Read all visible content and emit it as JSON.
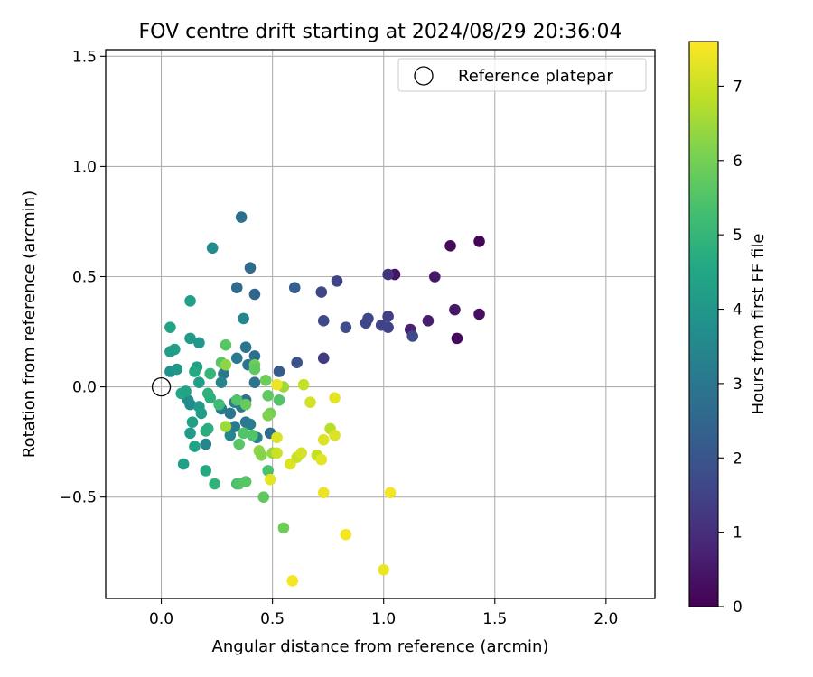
{
  "chart_data": {
    "type": "scatter",
    "title": "FOV centre drift starting at 2024/08/29 20:36:04",
    "xlabel": "Angular distance from reference (arcmin)",
    "ylabel": "Rotation from reference (arcmin)",
    "xlim": [
      -0.25,
      2.22
    ],
    "ylim": [
      -0.96,
      1.53
    ],
    "xticks": [
      {
        "v": 0.0,
        "label": "0.0"
      },
      {
        "v": 0.5,
        "label": "0.5"
      },
      {
        "v": 1.0,
        "label": "1.0"
      },
      {
        "v": 1.5,
        "label": "1.5"
      },
      {
        "v": 2.0,
        "label": "2.0"
      }
    ],
    "yticks": [
      {
        "v": -0.5,
        "label": "−0.5"
      },
      {
        "v": 0.0,
        "label": "0.0"
      },
      {
        "v": 0.5,
        "label": "0.5"
      },
      {
        "v": 1.0,
        "label": "1.0"
      },
      {
        "v": 1.5,
        "label": "1.5"
      }
    ],
    "grid": true,
    "legend": {
      "position": "top-right",
      "entries": [
        "Reference platepar"
      ]
    },
    "reference_point": {
      "x": 0.0,
      "y": 0.0
    },
    "colorbar": {
      "label": "Hours from first FF file",
      "colormap": "viridis",
      "range": [
        0,
        7.6
      ],
      "ticks": [
        {
          "v": 0,
          "label": "0"
        },
        {
          "v": 1,
          "label": "1"
        },
        {
          "v": 2,
          "label": "2"
        },
        {
          "v": 3,
          "label": "3"
        },
        {
          "v": 4,
          "label": "4"
        },
        {
          "v": 5,
          "label": "5"
        },
        {
          "v": 6,
          "label": "6"
        },
        {
          "v": 7,
          "label": "7"
        }
      ]
    },
    "points": [
      {
        "x": 1.43,
        "y": 0.66,
        "h": 0.1
      },
      {
        "x": 1.3,
        "y": 0.64,
        "h": 0.2
      },
      {
        "x": 1.33,
        "y": 0.22,
        "h": 0.2
      },
      {
        "x": 1.43,
        "y": 0.33,
        "h": 0.3
      },
      {
        "x": 1.05,
        "y": 0.51,
        "h": 0.4
      },
      {
        "x": 1.23,
        "y": 0.5,
        "h": 0.5
      },
      {
        "x": 1.32,
        "y": 0.35,
        "h": 0.5
      },
      {
        "x": 1.2,
        "y": 0.3,
        "h": 0.6
      },
      {
        "x": 1.12,
        "y": 0.26,
        "h": 0.7
      },
      {
        "x": 1.02,
        "y": 0.51,
        "h": 1.1
      },
      {
        "x": 1.02,
        "y": 0.32,
        "h": 1.4
      },
      {
        "x": 0.99,
        "y": 0.28,
        "h": 1.5
      },
      {
        "x": 1.02,
        "y": 0.27,
        "h": 1.5
      },
      {
        "x": 0.93,
        "y": 0.31,
        "h": 1.6
      },
      {
        "x": 0.92,
        "y": 0.29,
        "h": 1.6
      },
      {
        "x": 1.13,
        "y": 0.23,
        "h": 1.7
      },
      {
        "x": 0.79,
        "y": 0.48,
        "h": 1.5
      },
      {
        "x": 0.72,
        "y": 0.43,
        "h": 1.6
      },
      {
        "x": 0.73,
        "y": 0.3,
        "h": 1.7
      },
      {
        "x": 0.83,
        "y": 0.27,
        "h": 1.8
      },
      {
        "x": 0.73,
        "y": 0.13,
        "h": 1.3
      },
      {
        "x": 0.61,
        "y": 0.11,
        "h": 1.9
      },
      {
        "x": 0.53,
        "y": 0.07,
        "h": 2.2
      },
      {
        "x": 0.6,
        "y": 0.45,
        "h": 2.3
      },
      {
        "x": 0.42,
        "y": 0.42,
        "h": 2.5
      },
      {
        "x": 0.4,
        "y": 0.54,
        "h": 2.6
      },
      {
        "x": 0.34,
        "y": 0.45,
        "h": 2.6
      },
      {
        "x": 0.36,
        "y": 0.77,
        "h": 2.8
      },
      {
        "x": 0.23,
        "y": 0.63,
        "h": 3.6
      },
      {
        "x": 0.37,
        "y": 0.31,
        "h": 3.5
      },
      {
        "x": 0.38,
        "y": 0.18,
        "h": 2.9
      },
      {
        "x": 0.42,
        "y": 0.14,
        "h": 2.8
      },
      {
        "x": 0.34,
        "y": 0.13,
        "h": 3.1
      },
      {
        "x": 0.39,
        "y": 0.1,
        "h": 2.9
      },
      {
        "x": 0.42,
        "y": 0.02,
        "h": 2.9
      },
      {
        "x": 0.28,
        "y": 0.06,
        "h": 3.0
      },
      {
        "x": 0.27,
        "y": 0.02,
        "h": 3.4
      },
      {
        "x": 0.33,
        "y": -0.07,
        "h": 3.2
      },
      {
        "x": 0.36,
        "y": -0.09,
        "h": 3.0
      },
      {
        "x": 0.38,
        "y": -0.06,
        "h": 2.9
      },
      {
        "x": 0.31,
        "y": -0.12,
        "h": 3.0
      },
      {
        "x": 0.27,
        "y": -0.1,
        "h": 3.1
      },
      {
        "x": 0.33,
        "y": -0.18,
        "h": 3.1
      },
      {
        "x": 0.38,
        "y": -0.16,
        "h": 3.0
      },
      {
        "x": 0.4,
        "y": -0.17,
        "h": 3.2
      },
      {
        "x": 0.43,
        "y": -0.23,
        "h": 3.3
      },
      {
        "x": 0.31,
        "y": -0.22,
        "h": 3.5
      },
      {
        "x": 0.49,
        "y": -0.21,
        "h": 2.7
      },
      {
        "x": 0.2,
        "y": -0.26,
        "h": 3.4
      },
      {
        "x": 0.13,
        "y": -0.08,
        "h": 3.6
      },
      {
        "x": 0.12,
        "y": -0.06,
        "h": 3.7
      },
      {
        "x": 0.04,
        "y": 0.07,
        "h": 3.8
      },
      {
        "x": 0.07,
        "y": 0.08,
        "h": 4.0
      },
      {
        "x": 0.04,
        "y": 0.16,
        "h": 4.2
      },
      {
        "x": 0.06,
        "y": 0.17,
        "h": 4.2
      },
      {
        "x": 0.04,
        "y": 0.27,
        "h": 4.4
      },
      {
        "x": 0.13,
        "y": 0.39,
        "h": 4.3
      },
      {
        "x": 0.13,
        "y": 0.22,
        "h": 4.1
      },
      {
        "x": 0.17,
        "y": 0.2,
        "h": 4.0
      },
      {
        "x": 0.16,
        "y": 0.09,
        "h": 4.3
      },
      {
        "x": 0.17,
        "y": 0.02,
        "h": 4.2
      },
      {
        "x": 0.15,
        "y": 0.07,
        "h": 4.6
      },
      {
        "x": 0.09,
        "y": -0.03,
        "h": 4.5
      },
      {
        "x": 0.11,
        "y": -0.02,
        "h": 4.4
      },
      {
        "x": 0.17,
        "y": -0.09,
        "h": 4.1
      },
      {
        "x": 0.18,
        "y": -0.12,
        "h": 4.2
      },
      {
        "x": 0.13,
        "y": -0.21,
        "h": 4.1
      },
      {
        "x": 0.14,
        "y": -0.16,
        "h": 4.3
      },
      {
        "x": 0.15,
        "y": -0.27,
        "h": 4.4
      },
      {
        "x": 0.1,
        "y": -0.35,
        "h": 4.3
      },
      {
        "x": 0.21,
        "y": -0.19,
        "h": 4.8
      },
      {
        "x": 0.2,
        "y": -0.2,
        "h": 4.7
      },
      {
        "x": 0.21,
        "y": -0.03,
        "h": 4.9
      },
      {
        "x": 0.22,
        "y": -0.05,
        "h": 4.8
      },
      {
        "x": 0.2,
        "y": -0.38,
        "h": 4.6
      },
      {
        "x": 0.24,
        "y": -0.44,
        "h": 4.9
      },
      {
        "x": 0.26,
        "y": -0.08,
        "h": 5.2
      },
      {
        "x": 0.27,
        "y": 0.11,
        "h": 5.6
      },
      {
        "x": 0.22,
        "y": 0.06,
        "h": 5.0
      },
      {
        "x": 0.29,
        "y": 0.19,
        "h": 5.6
      },
      {
        "x": 0.34,
        "y": -0.06,
        "h": 5.5
      },
      {
        "x": 0.35,
        "y": -0.26,
        "h": 5.6
      },
      {
        "x": 0.34,
        "y": -0.44,
        "h": 5.3
      },
      {
        "x": 0.35,
        "y": -0.44,
        "h": 5.5
      },
      {
        "x": 0.38,
        "y": -0.43,
        "h": 5.6
      },
      {
        "x": 0.37,
        "y": -0.21,
        "h": 5.5
      },
      {
        "x": 0.41,
        "y": -0.22,
        "h": 5.5
      },
      {
        "x": 0.38,
        "y": -0.08,
        "h": 5.8
      },
      {
        "x": 0.42,
        "y": 0.1,
        "h": 5.9
      },
      {
        "x": 0.42,
        "y": 0.08,
        "h": 5.7
      },
      {
        "x": 0.47,
        "y": 0.03,
        "h": 5.9
      },
      {
        "x": 0.48,
        "y": -0.04,
        "h": 5.7
      },
      {
        "x": 0.53,
        "y": -0.06,
        "h": 5.5
      },
      {
        "x": 0.49,
        "y": -0.12,
        "h": 6.0
      },
      {
        "x": 0.48,
        "y": -0.13,
        "h": 6.1
      },
      {
        "x": 0.44,
        "y": -0.29,
        "h": 6.3
      },
      {
        "x": 0.45,
        "y": -0.31,
        "h": 6.2
      },
      {
        "x": 0.48,
        "y": -0.38,
        "h": 5.4
      },
      {
        "x": 0.46,
        "y": -0.5,
        "h": 5.7
      },
      {
        "x": 0.55,
        "y": -0.64,
        "h": 5.9
      },
      {
        "x": 0.29,
        "y": 0.1,
        "h": 6.3
      },
      {
        "x": 0.29,
        "y": -0.18,
        "h": 6.5
      },
      {
        "x": 0.5,
        "y": -0.3,
        "h": 6.4
      },
      {
        "x": 0.55,
        "y": 0.0,
        "h": 6.5
      },
      {
        "x": 0.64,
        "y": 0.01,
        "h": 6.9
      },
      {
        "x": 0.67,
        "y": -0.07,
        "h": 7.1
      },
      {
        "x": 0.52,
        "y": 0.01,
        "h": 7.4
      },
      {
        "x": 0.52,
        "y": -0.23,
        "h": 7.2
      },
      {
        "x": 0.52,
        "y": -0.3,
        "h": 7.0
      },
      {
        "x": 0.49,
        "y": -0.42,
        "h": 7.3
      },
      {
        "x": 0.58,
        "y": -0.35,
        "h": 7.2
      },
      {
        "x": 0.61,
        "y": -0.32,
        "h": 7.0
      },
      {
        "x": 0.63,
        "y": -0.3,
        "h": 7.1
      },
      {
        "x": 0.7,
        "y": -0.31,
        "h": 6.9
      },
      {
        "x": 0.72,
        "y": -0.33,
        "h": 7.3
      },
      {
        "x": 0.73,
        "y": -0.24,
        "h": 7.2
      },
      {
        "x": 0.76,
        "y": -0.19,
        "h": 6.8
      },
      {
        "x": 0.78,
        "y": -0.22,
        "h": 7.2
      },
      {
        "x": 0.78,
        "y": -0.05,
        "h": 7.3
      },
      {
        "x": 0.73,
        "y": -0.48,
        "h": 7.4
      },
      {
        "x": 0.59,
        "y": -0.88,
        "h": 7.5
      },
      {
        "x": 0.83,
        "y": -0.67,
        "h": 7.5
      },
      {
        "x": 1.0,
        "y": -0.83,
        "h": 7.4
      },
      {
        "x": 1.03,
        "y": -0.48,
        "h": 7.5
      }
    ]
  }
}
